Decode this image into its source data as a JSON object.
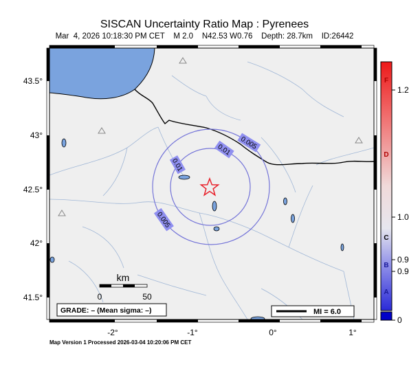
{
  "title": "SISCAN Uncertainty Ratio Map : Pyrenees",
  "subtitle": {
    "datetime": "Mar  4, 2026 10:18:30 PM CET",
    "magnitude": "M 2.0",
    "location": "N42.53 W0.76",
    "depth": "Depth: 28.7km",
    "id": "ID:26442"
  },
  "map": {
    "lon_range": [
      -2.8,
      1.3
    ],
    "lat_range": [
      41.25,
      43.75
    ],
    "lon_ticks": [
      "-2°",
      "-1°",
      "0°",
      "1°"
    ],
    "lat_ticks": [
      "43.5°",
      "43°",
      "42.5°",
      "42°",
      "41.5°"
    ],
    "epicenter": {
      "lon": -0.76,
      "lat": 42.53,
      "symbol": "star",
      "color": "#e8202a"
    },
    "contours": [
      {
        "label": "0.01"
      },
      {
        "label": "0.005"
      }
    ],
    "contour_labels": [
      "0.005",
      "0.01",
      "0.01",
      "0.005"
    ],
    "stations": "triangle",
    "sea_color": "#7aa3de",
    "land_color": "#efefef"
  },
  "scale_bar": {
    "unit": "km",
    "min": "0",
    "max": "50"
  },
  "grade_box": "GRADE: – (Mean sigma: –)",
  "mi_legend": "MI = 6.0",
  "colorbar": {
    "grades": [
      "F",
      "D",
      "C",
      "B",
      "A"
    ],
    "values": [
      "1.2",
      "1.0",
      "0.9",
      "0.9",
      "0"
    ]
  },
  "footer": "Map Version 1 Processed 2026-03-04 10:20:06 PM CET"
}
